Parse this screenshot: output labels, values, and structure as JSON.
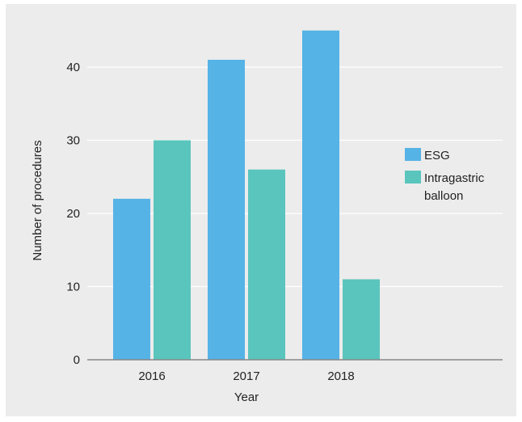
{
  "chart_data": {
    "type": "bar",
    "categories": [
      "2016",
      "2017",
      "2018"
    ],
    "series": [
      {
        "name": "ESG",
        "values": [
          22,
          41,
          45
        ]
      },
      {
        "name": "Intragastric balloon",
        "values": [
          30,
          26,
          11
        ]
      }
    ],
    "title": "",
    "xlabel": "Year",
    "ylabel": "Number of procedures",
    "ylim": [
      0,
      50
    ],
    "yticks": [
      0,
      10,
      20,
      30,
      40
    ],
    "grid": true,
    "legend_position": "right",
    "legend_lines": [
      [
        "ESG"
      ],
      [
        "Intragastric",
        "balloon"
      ]
    ],
    "colors": {
      "series": [
        "#55b3e6",
        "#5ac5bd"
      ],
      "background": "#ececec",
      "grid": "#ffffff",
      "axis": "#888888"
    }
  }
}
